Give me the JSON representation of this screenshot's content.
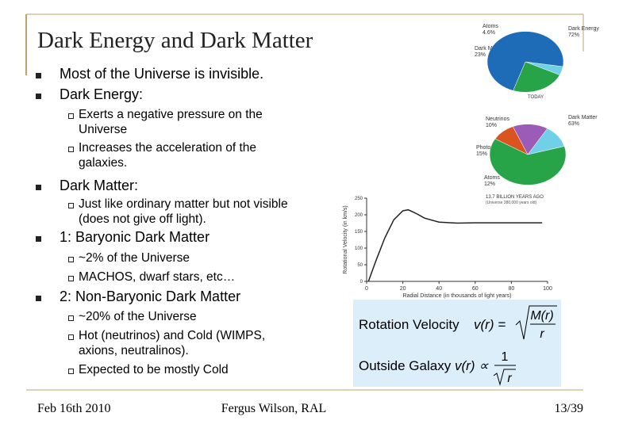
{
  "slide": {
    "title": "Dark Energy and Dark Matter",
    "bullets": [
      {
        "text": "Most of the Universe is invisible.",
        "level": 1
      },
      {
        "text": "Dark Energy:",
        "level": 1
      },
      {
        "text": "Exerts a negative pressure on the Universe",
        "level": 2
      },
      {
        "text": "Increases the acceleration of the galaxies.",
        "level": 2
      },
      {
        "text": "Dark Matter:",
        "level": 1
      },
      {
        "text": "Just like ordinary matter but not visible (does not give off light).",
        "level": 2
      },
      {
        "text": "1: Baryonic Dark Matter",
        "level": 1
      },
      {
        "text": "~2% of the Universe",
        "level": 2
      },
      {
        "text": "MACHOS, dwarf stars, etc…",
        "level": 2
      },
      {
        "text": "2: Non-Baryonic Dark Matter",
        "level": 1
      },
      {
        "text": "~20% of the Universe",
        "level": 2
      },
      {
        "text": "Hot (neutrinos) and Cold (WIMPS, axions, neutralinos).",
        "level": 2
      },
      {
        "text": "Expected to be mostly Cold",
        "level": 2
      }
    ],
    "footer": {
      "date": "Feb 16th 2010",
      "author": "Fergus Wilson, RAL",
      "page": "13/39"
    }
  },
  "pie_today": {
    "type": "pie",
    "caption": "TODAY",
    "categories": [
      "Atoms",
      "Dark Matter",
      "Dark Energy"
    ],
    "values": [
      4.6,
      23,
      72
    ],
    "value_labels": [
      "4.6%",
      "23%",
      "72%"
    ],
    "colors": [
      "#6fd0e8",
      "#27a348",
      "#1e6bb8"
    ]
  },
  "pie_early": {
    "type": "pie",
    "caption": "13.7 BILLION YEARS AGO",
    "subcaption": "(Universe 380,000 years old)",
    "categories": [
      "Neutrinos",
      "Photons",
      "Atoms",
      "Dark Matter"
    ],
    "values": [
      10,
      15,
      12,
      63
    ],
    "value_labels": [
      "10%",
      "15%",
      "12%",
      "63%"
    ],
    "colors": [
      "#d9541e",
      "#9b5cb8",
      "#6fd0e8",
      "#27a348"
    ]
  },
  "rotation_curve": {
    "type": "line",
    "x_label": "Radial Distance (in thousands of light years)",
    "y_label": "Rotational Velocity (in km/s)",
    "x": [
      1,
      5,
      10,
      15,
      20,
      23,
      27,
      32,
      40,
      50,
      60,
      70,
      80,
      90,
      97
    ],
    "values": [
      0,
      60,
      130,
      185,
      212,
      215,
      205,
      190,
      178,
      175,
      176,
      176,
      176,
      176,
      176
    ],
    "color": "#222222",
    "xlim": [
      0,
      100
    ],
    "ylim": [
      0,
      250
    ],
    "xticks": [
      0,
      20,
      40,
      60,
      80,
      100
    ],
    "yticks": [
      0,
      50,
      100,
      150,
      200,
      250
    ]
  },
  "formula": {
    "line1_label": "Rotation Velocity",
    "line1_lhs": "v(r) =",
    "line1_num": "M(r)",
    "line1_den": "r",
    "line2_label": "Outside Galaxy",
    "line2_lhs": "v(r) ∝",
    "line2_num": "1",
    "line2_den": "r"
  }
}
